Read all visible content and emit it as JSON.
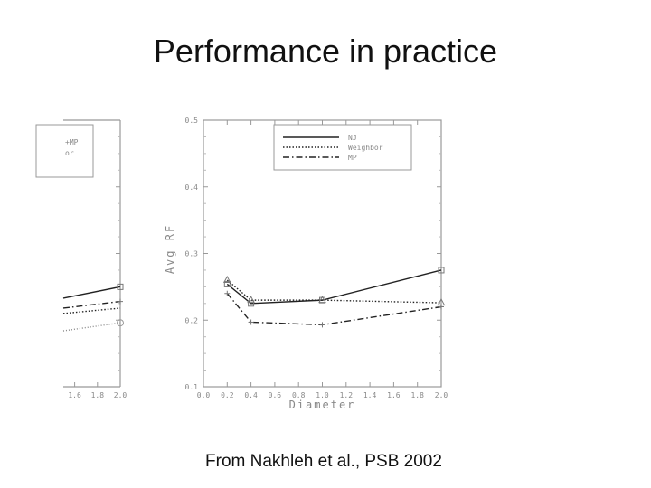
{
  "slide": {
    "title": "Performance in practice",
    "caption": "From Nakhleh et al., PSB 2002"
  },
  "chart_data": [
    {
      "type": "line",
      "partial": true,
      "visible_x_tick_labels": [
        "1.6",
        "1.8",
        "2.0"
      ],
      "legend_fragments": [
        "+MP",
        "or"
      ],
      "xlim": [
        1.5,
        2.0
      ],
      "ylim": [
        0.1,
        0.5
      ],
      "series": [
        {
          "style": "solid",
          "x": [
            1.5,
            2.0
          ],
          "values": [
            0.233,
            0.25
          ]
        },
        {
          "style": "dashdot",
          "x": [
            1.5,
            2.0
          ],
          "values": [
            0.218,
            0.228
          ]
        },
        {
          "style": "dotted",
          "x": [
            1.5,
            2.0
          ],
          "values": [
            0.21,
            0.218
          ]
        },
        {
          "style": "dotted-gray",
          "x": [
            1.5,
            2.0
          ],
          "values": [
            0.184,
            0.196
          ]
        }
      ]
    },
    {
      "type": "line",
      "xlabel": "Diameter",
      "ylabel": "Avg RF",
      "xlim": [
        0.0,
        2.0
      ],
      "ylim": [
        0.1,
        0.5
      ],
      "x_ticks": [
        "0.0",
        "0.2",
        "0.4",
        "0.6",
        "0.8",
        "1.0",
        "1.2",
        "1.4",
        "1.6",
        "1.8",
        "2.0"
      ],
      "y_ticks": [
        "0.1",
        "0.2",
        "0.3",
        "0.4",
        "0.5"
      ],
      "legend_position": "top-right",
      "series": [
        {
          "name": "NJ",
          "style": "solid",
          "marker": "square",
          "x": [
            0.2,
            0.4,
            1.0,
            2.0
          ],
          "values": [
            0.254,
            0.225,
            0.23,
            0.275
          ]
        },
        {
          "name": "Weighbor",
          "style": "dotted",
          "marker": "triangle",
          "x": [
            0.2,
            0.4,
            1.0,
            2.0
          ],
          "values": [
            0.26,
            0.23,
            0.23,
            0.226
          ]
        },
        {
          "name": "MP",
          "style": "dashdot",
          "marker": "plus",
          "x": [
            0.2,
            0.4,
            1.0,
            2.0
          ],
          "values": [
            0.24,
            0.197,
            0.193,
            0.22
          ]
        }
      ]
    }
  ]
}
